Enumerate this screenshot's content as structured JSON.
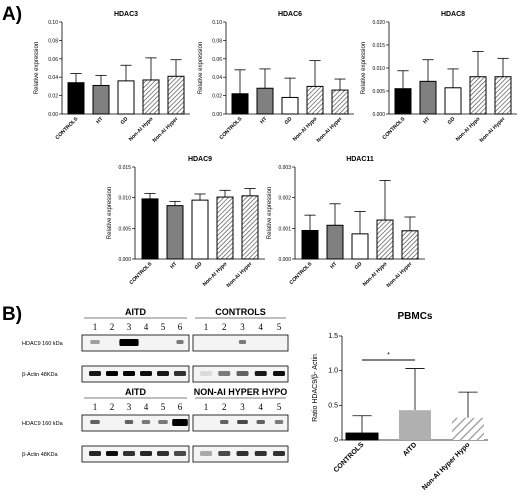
{
  "panel_a_label": "A)",
  "panel_b_label": "B)",
  "chart_data": [
    {
      "type": "bar",
      "title": "HDAC3",
      "ylabel": "Relative expression",
      "ylim": [
        0,
        0.1
      ],
      "yticks": [
        "0.00",
        "0.02",
        "0.04",
        "0.06",
        "0.08",
        "0.10"
      ],
      "categories": [
        "CONTROLS",
        "HT",
        "GD",
        "Non-AI Hypo",
        "Non-AI Hyper"
      ],
      "values": [
        0.034,
        0.031,
        0.036,
        0.037,
        0.041
      ],
      "errors": [
        0.01,
        0.011,
        0.017,
        0.024,
        0.018
      ],
      "fills": [
        "#000000",
        "#808080",
        "#ffffff",
        "hatch",
        "hatch"
      ]
    },
    {
      "type": "bar",
      "title": "HDAC6",
      "ylabel": "Relative expression",
      "ylim": [
        0,
        0.1
      ],
      "yticks": [
        "0.00",
        "0.02",
        "0.04",
        "0.06",
        "0.08",
        "0.10"
      ],
      "categories": [
        "CONTROLS",
        "HT",
        "GD",
        "Non-AI Hypo",
        "Non-AI Hyper"
      ],
      "values": [
        0.022,
        0.028,
        0.018,
        0.03,
        0.026
      ],
      "errors": [
        0.026,
        0.021,
        0.021,
        0.028,
        0.012
      ],
      "fills": [
        "#000000",
        "#808080",
        "#ffffff",
        "hatch",
        "hatch"
      ]
    },
    {
      "type": "bar",
      "title": "HDAC8",
      "ylabel": "Relative expression",
      "ylim": [
        0,
        0.02
      ],
      "yticks": [
        "0.000",
        "0.005",
        "0.010",
        "0.015",
        "0.020"
      ],
      "categories": [
        "CONTROLS",
        "HT",
        "GD",
        "Non-AI Hypo",
        "Non-AI Hyper"
      ],
      "values": [
        0.0055,
        0.0071,
        0.0057,
        0.0081,
        0.0081
      ],
      "errors": [
        0.0039,
        0.0047,
        0.0041,
        0.0055,
        0.004
      ],
      "fills": [
        "#000000",
        "#808080",
        "#ffffff",
        "hatch",
        "hatch"
      ]
    },
    {
      "type": "bar",
      "title": "HDAC9",
      "ylabel": "Relative expression",
      "ylim": [
        0,
        0.015
      ],
      "yticks": [
        "0.000",
        "0.005",
        "0.010",
        "0.015"
      ],
      "categories": [
        "CONTROLS",
        "HT",
        "GD",
        "Non-AI Hypo",
        "Non-AI Hyper"
      ],
      "values": [
        0.0098,
        0.0087,
        0.0096,
        0.0101,
        0.0103
      ],
      "errors": [
        0.0009,
        0.0007,
        0.001,
        0.0011,
        0.0012
      ],
      "fills": [
        "#000000",
        "#808080",
        "#ffffff",
        "hatch",
        "hatch"
      ]
    },
    {
      "type": "bar",
      "title": "HDAC11",
      "ylabel": "Relative expression",
      "ylim": [
        0,
        0.003
      ],
      "yticks": [
        "0.000",
        "0.001",
        "0.002",
        "0.003"
      ],
      "categories": [
        "CONTROLS",
        "HT",
        "GD",
        "Non-AI Hypo",
        "Non-AI Hyper"
      ],
      "values": [
        0.00093,
        0.0011,
        0.00082,
        0.00127,
        0.00092
      ],
      "errors": [
        0.0005,
        0.0007,
        0.00073,
        0.00129,
        0.00045
      ],
      "fills": [
        "#000000",
        "#808080",
        "#ffffff",
        "hatch",
        "hatch"
      ]
    },
    {
      "type": "bar",
      "title": "PBMCs",
      "ylabel": "Ratio HDAC9/β- Actin",
      "ylim": [
        0,
        1.5
      ],
      "yticks": [
        "0",
        "0.5",
        "1.0",
        "1.5"
      ],
      "categories": [
        "CONTROLS",
        "AITD",
        "Non-AI Hyper Hypo"
      ],
      "values": [
        0.1,
        0.43,
        0.32
      ],
      "errors": [
        0.25,
        0.6,
        0.37
      ],
      "fills": [
        "#000000",
        "#b0b0b0",
        "hatch"
      ],
      "annotation": "*"
    }
  ],
  "blots": {
    "top": {
      "group1": "AITD",
      "group2": "CONTROLS",
      "lanes1": [
        "1",
        "2",
        "3",
        "4",
        "5",
        "6"
      ],
      "lanes2": [
        "1",
        "2",
        "3",
        "4",
        "5"
      ],
      "row1_label": "HDAC9 160 kDa",
      "row2_label": "β-Actin 48KDa"
    },
    "bottom": {
      "group1": "AITD",
      "group2": "NON-AI HYPER HYPO",
      "lanes1": [
        "1",
        "2",
        "3",
        "4",
        "5",
        "6"
      ],
      "lanes2": [
        "1",
        "2",
        "3",
        "4",
        "5"
      ],
      "row1_label": "HDAC9 160 kDa",
      "row2_label": "β-Actin 48KDa"
    }
  }
}
